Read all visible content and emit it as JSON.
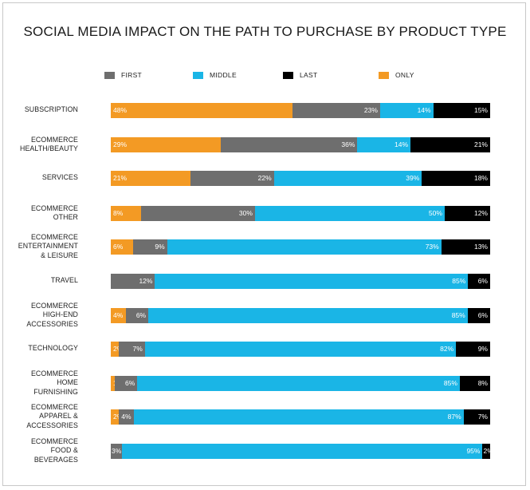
{
  "chart_data": {
    "type": "bar",
    "orientation": "horizontal",
    "stacked": true,
    "percent_stacked": true,
    "title": "SOCIAL MEDIA IMPACT ON THE PATH TO PURCHASE BY PRODUCT TYPE",
    "legend_placement": "top",
    "grid": false,
    "categories": [
      [
        "SUBSCRIPTION"
      ],
      [
        "ECOMMERCE",
        "HEALTH/BEAUTY"
      ],
      [
        "SERVICES"
      ],
      [
        "ECOMMERCE",
        "OTHER"
      ],
      [
        "ECOMMERCE",
        "ENTERTAINMENT",
        "& LEISURE"
      ],
      [
        "TRAVEL"
      ],
      [
        "ECOMMERCE",
        "HIGH-END",
        "ACCESSORIES"
      ],
      [
        "TECHNOLOGY"
      ],
      [
        "ECOMMERCE",
        "HOME",
        "FURNISHING"
      ],
      [
        "ECOMMERCE",
        "APPAREL &",
        "ACCESSORIES"
      ],
      [
        "ECOMMERCE",
        "FOOD &",
        "BEVERAGES"
      ]
    ],
    "stack_order": [
      "ONLY",
      "FIRST",
      "MIDDLE",
      "LAST"
    ],
    "series": [
      {
        "name": "FIRST",
        "color": "#6e6e6e",
        "values": [
          23,
          36,
          22,
          30,
          9,
          12,
          6,
          7,
          6,
          4,
          3
        ]
      },
      {
        "name": "MIDDLE",
        "color": "#1ab5e6",
        "values": [
          14,
          14,
          39,
          50,
          73,
          85,
          85,
          82,
          85,
          87,
          95
        ]
      },
      {
        "name": "LAST",
        "color": "#000000",
        "values": [
          15,
          21,
          18,
          12,
          13,
          6,
          6,
          9,
          8,
          7,
          2
        ]
      },
      {
        "name": "ONLY",
        "color": "#f39a24",
        "values": [
          48,
          29,
          21,
          8,
          6,
          0,
          4,
          2,
          1,
          2,
          0
        ]
      }
    ]
  }
}
